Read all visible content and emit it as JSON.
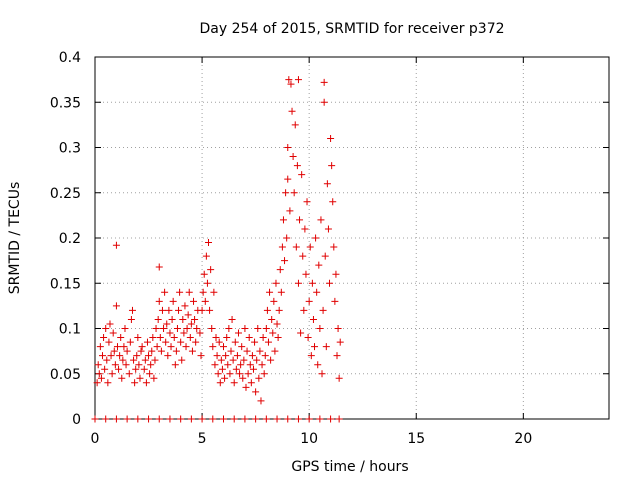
{
  "chart_data": {
    "type": "scatter",
    "title": "Day 254 of 2015, SRMTID for receiver p372",
    "xlabel": "GPS time / hours",
    "ylabel": "SRMTID / TECUs",
    "xlim": [
      0,
      24
    ],
    "ylim": [
      0,
      0.4
    ],
    "grid": true,
    "x_ticks": [
      0,
      5,
      10,
      15,
      20
    ],
    "x_tick_labels": [
      "0",
      "5",
      "10",
      "15",
      "20"
    ],
    "y_ticks": [
      0,
      0.05,
      0.1,
      0.15,
      0.2,
      0.25,
      0.3,
      0.35,
      0.4
    ],
    "y_tick_labels": [
      "0",
      "0.05",
      "0.1",
      "0.15",
      "0.2",
      "0.25",
      "0.3",
      "0.35",
      "0.4"
    ],
    "marker": "+",
    "color": "#e00000",
    "series": [
      {
        "name": "SRMTID",
        "points": [
          [
            0.1,
            0.04
          ],
          [
            0.15,
            0.06
          ],
          [
            0.2,
            0.05
          ],
          [
            0.25,
            0.08
          ],
          [
            0.3,
            0.045
          ],
          [
            0.35,
            0.07
          ],
          [
            0.4,
            0.09
          ],
          [
            0.45,
            0.055
          ],
          [
            0.5,
            0.1
          ],
          [
            0.55,
            0.065
          ],
          [
            0.6,
            0.04
          ],
          [
            0.65,
            0.085
          ],
          [
            0.7,
            0.105
          ],
          [
            0.75,
            0.07
          ],
          [
            0.8,
            0.05
          ],
          [
            0.85,
            0.095
          ],
          [
            0.9,
            0.075
          ],
          [
            0.95,
            0.06
          ],
          [
            1.0,
            0.125
          ],
          [
            1.0,
            0.192
          ],
          [
            1.05,
            0.08
          ],
          [
            1.1,
            0.055
          ],
          [
            1.15,
            0.07
          ],
          [
            1.2,
            0.09
          ],
          [
            1.25,
            0.045
          ],
          [
            1.3,
            0.065
          ],
          [
            1.35,
            0.08
          ],
          [
            1.4,
            0.1
          ],
          [
            1.45,
            0.06
          ],
          [
            1.5,
            0.075
          ],
          [
            1.6,
            0.05
          ],
          [
            1.65,
            0.085
          ],
          [
            1.7,
            0.11
          ],
          [
            1.75,
            0.12
          ],
          [
            1.8,
            0.065
          ],
          [
            1.85,
            0.04
          ],
          [
            1.9,
            0.055
          ],
          [
            1.95,
            0.07
          ],
          [
            2.0,
            0.09
          ],
          [
            2.05,
            0.06
          ],
          [
            2.1,
            0.045
          ],
          [
            2.15,
            0.075
          ],
          [
            2.2,
            0.08
          ],
          [
            2.3,
            0.055
          ],
          [
            2.35,
            0.065
          ],
          [
            2.4,
            0.04
          ],
          [
            2.45,
            0.085
          ],
          [
            2.5,
            0.07
          ],
          [
            2.55,
            0.05
          ],
          [
            2.6,
            0.06
          ],
          [
            2.65,
            0.075
          ],
          [
            2.7,
            0.09
          ],
          [
            2.75,
            0.045
          ],
          [
            2.8,
            0.065
          ],
          [
            2.85,
            0.1
          ],
          [
            2.9,
            0.08
          ],
          [
            2.95,
            0.11
          ],
          [
            3.0,
            0.13
          ],
          [
            3.0,
            0.168
          ],
          [
            3.05,
            0.09
          ],
          [
            3.1,
            0.075
          ],
          [
            3.15,
            0.12
          ],
          [
            3.2,
            0.1
          ],
          [
            3.25,
            0.14
          ],
          [
            3.3,
            0.085
          ],
          [
            3.35,
            0.105
          ],
          [
            3.4,
            0.07
          ],
          [
            3.45,
            0.12
          ],
          [
            3.5,
            0.095
          ],
          [
            3.55,
            0.08
          ],
          [
            3.6,
            0.11
          ],
          [
            3.65,
            0.13
          ],
          [
            3.7,
            0.09
          ],
          [
            3.75,
            0.06
          ],
          [
            3.8,
            0.075
          ],
          [
            3.85,
            0.1
          ],
          [
            3.9,
            0.12
          ],
          [
            3.95,
            0.14
          ],
          [
            4.0,
            0.085
          ],
          [
            4.05,
            0.065
          ],
          [
            4.1,
            0.11
          ],
          [
            4.15,
            0.095
          ],
          [
            4.2,
            0.125
          ],
          [
            4.25,
            0.08
          ],
          [
            4.3,
            0.1
          ],
          [
            4.35,
            0.115
          ],
          [
            4.4,
            0.14
          ],
          [
            4.45,
            0.09
          ],
          [
            4.5,
            0.105
          ],
          [
            4.55,
            0.075
          ],
          [
            4.6,
            0.13
          ],
          [
            4.65,
            0.11
          ],
          [
            4.7,
            0.085
          ],
          [
            4.75,
            0.1
          ],
          [
            4.8,
            0.12
          ],
          [
            4.9,
            0.095
          ],
          [
            4.95,
            0.07
          ],
          [
            5.0,
            0.12
          ],
          [
            5.05,
            0.14
          ],
          [
            5.1,
            0.16
          ],
          [
            5.15,
            0.13
          ],
          [
            5.2,
            0.18
          ],
          [
            5.25,
            0.15
          ],
          [
            5.3,
            0.195
          ],
          [
            5.35,
            0.12
          ],
          [
            5.4,
            0.165
          ],
          [
            5.45,
            0.1
          ],
          [
            5.5,
            0.08
          ],
          [
            5.55,
            0.14
          ],
          [
            5.6,
            0.06
          ],
          [
            5.65,
            0.09
          ],
          [
            5.7,
            0.07
          ],
          [
            5.75,
            0.05
          ],
          [
            5.8,
            0.085
          ],
          [
            5.85,
            0.04
          ],
          [
            5.9,
            0.065
          ],
          [
            5.95,
            0.055
          ],
          [
            6.0,
            0.08
          ],
          [
            6.05,
            0.045
          ],
          [
            6.1,
            0.07
          ],
          [
            6.15,
            0.09
          ],
          [
            6.2,
            0.06
          ],
          [
            6.25,
            0.1
          ],
          [
            6.3,
            0.05
          ],
          [
            6.35,
            0.075
          ],
          [
            6.4,
            0.11
          ],
          [
            6.45,
            0.065
          ],
          [
            6.5,
            0.04
          ],
          [
            6.55,
            0.085
          ],
          [
            6.6,
            0.055
          ],
          [
            6.65,
            0.07
          ],
          [
            6.7,
            0.095
          ],
          [
            6.75,
            0.05
          ],
          [
            6.8,
            0.06
          ],
          [
            6.85,
            0.08
          ],
          [
            6.9,
            0.045
          ],
          [
            6.95,
            0.065
          ],
          [
            7.0,
            0.1
          ],
          [
            7.05,
            0.035
          ],
          [
            7.1,
            0.075
          ],
          [
            7.15,
            0.05
          ],
          [
            7.2,
            0.09
          ],
          [
            7.25,
            0.06
          ],
          [
            7.3,
            0.04
          ],
          [
            7.35,
            0.07
          ],
          [
            7.4,
            0.055
          ],
          [
            7.45,
            0.085
          ],
          [
            7.5,
            0.03
          ],
          [
            7.55,
            0.065
          ],
          [
            7.6,
            0.1
          ],
          [
            7.65,
            0.045
          ],
          [
            7.7,
            0.075
          ],
          [
            7.75,
            0.02
          ],
          [
            7.8,
            0.06
          ],
          [
            7.85,
            0.09
          ],
          [
            7.9,
            0.05
          ],
          [
            7.95,
            0.07
          ],
          [
            8.0,
            0.1
          ],
          [
            8.05,
            0.12
          ],
          [
            8.1,
            0.085
          ],
          [
            8.15,
            0.14
          ],
          [
            8.2,
            0.065
          ],
          [
            8.25,
            0.11
          ],
          [
            8.3,
            0.095
          ],
          [
            8.35,
            0.13
          ],
          [
            8.4,
            0.075
          ],
          [
            8.45,
            0.15
          ],
          [
            8.5,
            0.105
          ],
          [
            8.55,
            0.09
          ],
          [
            8.6,
            0.12
          ],
          [
            8.65,
            0.165
          ],
          [
            8.7,
            0.14
          ],
          [
            8.75,
            0.19
          ],
          [
            8.8,
            0.22
          ],
          [
            8.85,
            0.175
          ],
          [
            8.9,
            0.25
          ],
          [
            8.95,
            0.2
          ],
          [
            9.0,
            0.265
          ],
          [
            9.0,
            0.3
          ],
          [
            9.05,
            0.375
          ],
          [
            9.1,
            0.23
          ],
          [
            9.15,
            0.37
          ],
          [
            9.2,
            0.34
          ],
          [
            9.25,
            0.29
          ],
          [
            9.3,
            0.25
          ],
          [
            9.35,
            0.325
          ],
          [
            9.4,
            0.19
          ],
          [
            9.45,
            0.28
          ],
          [
            9.5,
            0.15
          ],
          [
            9.5,
            0.375
          ],
          [
            9.55,
            0.22
          ],
          [
            9.6,
            0.095
          ],
          [
            9.65,
            0.27
          ],
          [
            9.7,
            0.18
          ],
          [
            9.75,
            0.12
          ],
          [
            9.8,
            0.21
          ],
          [
            9.85,
            0.16
          ],
          [
            9.9,
            0.24
          ],
          [
            9.95,
            0.09
          ],
          [
            10.0,
            0.13
          ],
          [
            10.05,
            0.19
          ],
          [
            10.1,
            0.07
          ],
          [
            10.15,
            0.15
          ],
          [
            10.2,
            0.11
          ],
          [
            10.25,
            0.08
          ],
          [
            10.3,
            0.2
          ],
          [
            10.35,
            0.14
          ],
          [
            10.4,
            0.06
          ],
          [
            10.45,
            0.17
          ],
          [
            10.5,
            0.1
          ],
          [
            10.55,
            0.22
          ],
          [
            10.6,
            0.05
          ],
          [
            10.65,
            0.12
          ],
          [
            10.7,
            0.35
          ],
          [
            10.7,
            0.372
          ],
          [
            10.75,
            0.18
          ],
          [
            10.8,
            0.08
          ],
          [
            10.85,
            0.26
          ],
          [
            10.9,
            0.21
          ],
          [
            10.95,
            0.15
          ],
          [
            11.0,
            0.31
          ],
          [
            11.05,
            0.28
          ],
          [
            11.1,
            0.24
          ],
          [
            11.15,
            0.19
          ],
          [
            11.2,
            0.13
          ],
          [
            11.25,
            0.16
          ],
          [
            11.3,
            0.07
          ],
          [
            11.35,
            0.1
          ],
          [
            11.4,
            0.045
          ],
          [
            11.45,
            0.085
          ],
          [
            0.0,
            0.0
          ],
          [
            0.5,
            0.0
          ],
          [
            1.0,
            0.0
          ],
          [
            1.5,
            0.0
          ],
          [
            2.0,
            0.0
          ],
          [
            2.5,
            0.0
          ],
          [
            3.0,
            0.0
          ],
          [
            3.5,
            0.0
          ],
          [
            4.0,
            0.0
          ],
          [
            4.5,
            0.0
          ],
          [
            5.0,
            0.0
          ],
          [
            5.5,
            0.0
          ],
          [
            6.0,
            0.0
          ],
          [
            6.5,
            0.0
          ],
          [
            7.0,
            0.0
          ],
          [
            7.5,
            0.0
          ],
          [
            8.0,
            0.0
          ],
          [
            8.5,
            0.0
          ],
          [
            9.0,
            0.0
          ],
          [
            9.5,
            0.0
          ],
          [
            10.0,
            0.0
          ],
          [
            10.5,
            0.0
          ],
          [
            11.0,
            0.0
          ],
          [
            11.4,
            0.0
          ]
        ]
      }
    ]
  }
}
